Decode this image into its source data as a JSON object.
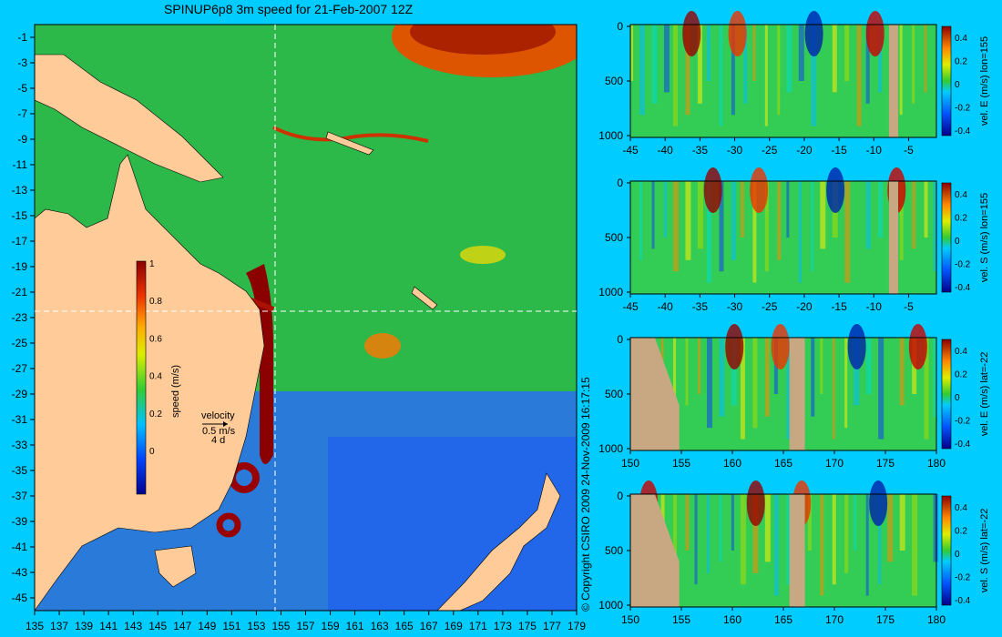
{
  "title": "SPINUP6p8 3m speed for 21-Feb-2007 12Z",
  "copyright": "© Copyright CSIRO 2009   24-Nov-2009 16:17:15",
  "colors": {
    "background": "#00ccff",
    "land": "#ffcc99",
    "section_land": "#c8a882",
    "crosshair": "#ffffff"
  },
  "map": {
    "xticks": [
      "135",
      "137",
      "139",
      "141",
      "143",
      "145",
      "147",
      "149",
      "151",
      "153",
      "155",
      "157",
      "159",
      "161",
      "163",
      "165",
      "167",
      "169",
      "171",
      "173",
      "175",
      "177",
      "179"
    ],
    "yticks": [
      "-1",
      "-3",
      "-5",
      "-7",
      "-9",
      "-11",
      "-13",
      "-15",
      "-17",
      "-19",
      "-21",
      "-23",
      "-25",
      "-27",
      "-29",
      "-31",
      "-33",
      "-35",
      "-37",
      "-39",
      "-41",
      "-43",
      "-45"
    ],
    "colorbar_ticks": [
      "1",
      "0.8",
      "0.6",
      "0.4",
      "0.2",
      "0"
    ],
    "colorbar_label": "speed (m/s)",
    "velocity_label": "velocity",
    "velocity_scale": "0.5 m/s",
    "velocity_time": "4 d",
    "crosshair_lon": "155",
    "crosshair_lat": "-22"
  },
  "chart_data": [
    {
      "type": "heatmap",
      "ylabel": "vel. E (m/s) lon=155",
      "xticks": [
        "-45",
        "-40",
        "-35",
        "-30",
        "-25",
        "-20",
        "-15",
        "-10",
        "-5"
      ],
      "yticks": [
        "0",
        "500",
        "1000"
      ],
      "cbar_ticks": [
        "0.4",
        "0.2",
        "0",
        "-0.2",
        "-0.4"
      ]
    },
    {
      "type": "heatmap",
      "ylabel": "vel. S (m/s) lon=155",
      "xticks": [
        "-45",
        "-40",
        "-35",
        "-30",
        "-25",
        "-20",
        "-15",
        "-10",
        "-5"
      ],
      "yticks": [
        "0",
        "500",
        "1000"
      ],
      "cbar_ticks": [
        "0.4",
        "0.2",
        "0",
        "-0.2",
        "-0.4"
      ]
    },
    {
      "type": "heatmap",
      "ylabel": "vel. E (m/s) lat=-22",
      "xticks": [
        "150",
        "155",
        "160",
        "165",
        "170",
        "175",
        "180"
      ],
      "yticks": [
        "0",
        "500",
        "1000"
      ],
      "cbar_ticks": [
        "0.4",
        "0.2",
        "0",
        "-0.2",
        "-0.4"
      ]
    },
    {
      "type": "heatmap",
      "ylabel": "vel. S (m/s) lat=-22",
      "xticks": [
        "150",
        "155",
        "160",
        "165",
        "170",
        "175",
        "180"
      ],
      "yticks": [
        "0",
        "500",
        "1000"
      ],
      "cbar_ticks": [
        "0.4",
        "0.2",
        "0",
        "-0.2",
        "-0.4"
      ]
    }
  ]
}
